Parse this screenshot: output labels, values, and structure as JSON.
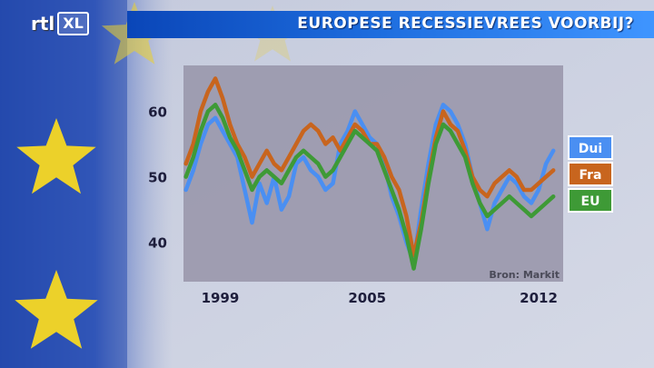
{
  "header": {
    "title": "EUROPESE RECESSIEVREES VOORBIJ?",
    "logo_rtl": "rtl",
    "logo_xl": "XL"
  },
  "chart_data": {
    "type": "line",
    "title": "EUROPESE RECESSIEVREES VOORBIJ?",
    "source": "Bron: Markit",
    "xlim": [
      1997.5,
      2013.0
    ],
    "ylim": [
      34,
      67
    ],
    "xticks": [
      {
        "value": 1999,
        "label": "1999"
      },
      {
        "value": 2005,
        "label": "2005"
      },
      {
        "value": 2012,
        "label": "2012"
      }
    ],
    "yticks": [
      {
        "value": 40,
        "label": "40"
      },
      {
        "value": 50,
        "label": "50"
      },
      {
        "value": 60,
        "label": "60"
      }
    ],
    "grid": false,
    "legend": "right, as labels at line ends",
    "series": [
      {
        "name": "Dui",
        "color": "#4a8ff2",
        "x": [
          1997.6,
          1997.9,
          1998.2,
          1998.5,
          1998.8,
          1999.1,
          1999.4,
          1999.7,
          2000.0,
          2000.3,
          2000.6,
          2000.9,
          2001.2,
          2001.5,
          2001.8,
          2002.1,
          2002.4,
          2002.7,
          2003.0,
          2003.3,
          2003.6,
          2003.9,
          2004.2,
          2004.5,
          2004.8,
          2005.1,
          2005.4,
          2005.7,
          2006.0,
          2006.3,
          2006.6,
          2006.9,
          2007.2,
          2007.5,
          2007.8,
          2008.1,
          2008.4,
          2008.7,
          2009.0,
          2009.3,
          2009.6,
          2009.9,
          2010.2,
          2010.5,
          2010.8,
          2011.1,
          2011.4,
          2011.7,
          2012.0,
          2012.3,
          2012.6
        ],
        "values": [
          48,
          51,
          55,
          58,
          59,
          57,
          55,
          53,
          48,
          43,
          49,
          46,
          50,
          45,
          47,
          52,
          53,
          51,
          50,
          48,
          49,
          55,
          57,
          60,
          58,
          56,
          55,
          52,
          47,
          44,
          40,
          37,
          45,
          52,
          58,
          61,
          60,
          58,
          55,
          50,
          46,
          42,
          46,
          48,
          50,
          49,
          47,
          46,
          48,
          52,
          54
        ]
      },
      {
        "name": "Fra",
        "color": "#c8651e",
        "x": [
          1997.6,
          1997.9,
          1998.2,
          1998.5,
          1998.8,
          1999.1,
          1999.4,
          1999.7,
          2000.0,
          2000.3,
          2000.6,
          2000.9,
          2001.2,
          2001.5,
          2001.8,
          2002.1,
          2002.4,
          2002.7,
          2003.0,
          2003.3,
          2003.6,
          2003.9,
          2004.2,
          2004.5,
          2004.8,
          2005.1,
          2005.4,
          2005.7,
          2006.0,
          2006.3,
          2006.6,
          2006.9,
          2007.2,
          2007.5,
          2007.8,
          2008.1,
          2008.4,
          2008.7,
          2009.0,
          2009.3,
          2009.6,
          2009.9,
          2010.2,
          2010.5,
          2010.8,
          2011.1,
          2011.4,
          2011.7,
          2012.0,
          2012.3,
          2012.6
        ],
        "values": [
          52,
          55,
          60,
          63,
          65,
          62,
          58,
          55,
          53,
          50,
          52,
          54,
          52,
          51,
          53,
          55,
          57,
          58,
          57,
          55,
          56,
          54,
          56,
          58,
          57,
          55,
          55,
          53,
          50,
          48,
          44,
          38,
          43,
          50,
          56,
          60,
          58,
          57,
          54,
          50,
          48,
          47,
          49,
          50,
          51,
          50,
          48,
          48,
          49,
          50,
          51
        ]
      },
      {
        "name": "EU",
        "color": "#3e9a36",
        "x": [
          1997.6,
          1997.9,
          1998.2,
          1998.5,
          1998.8,
          1999.1,
          1999.4,
          1999.7,
          2000.0,
          2000.3,
          2000.6,
          2000.9,
          2001.2,
          2001.5,
          2001.8,
          2002.1,
          2002.4,
          2002.7,
          2003.0,
          2003.3,
          2003.6,
          2003.9,
          2004.2,
          2004.5,
          2004.8,
          2005.1,
          2005.4,
          2005.7,
          2006.0,
          2006.3,
          2006.6,
          2006.9,
          2007.2,
          2007.5,
          2007.8,
          2008.1,
          2008.4,
          2008.7,
          2009.0,
          2009.3,
          2009.6,
          2009.9,
          2010.2,
          2010.5,
          2010.8,
          2011.1,
          2011.4,
          2011.7,
          2012.0,
          2012.3,
          2012.6
        ],
        "values": [
          50,
          53,
          57,
          60,
          61,
          59,
          56,
          54,
          51,
          48,
          50,
          51,
          50,
          49,
          51,
          53,
          54,
          53,
          52,
          50,
          51,
          53,
          55,
          57,
          56,
          55,
          54,
          51,
          48,
          45,
          41,
          36,
          42,
          49,
          55,
          58,
          57,
          55,
          53,
          49,
          46,
          44,
          45,
          46,
          47,
          46,
          45,
          44,
          45,
          46,
          47
        ]
      }
    ]
  },
  "colors": {
    "title_bar": "#1a5fd6",
    "plot_bg": "#9b99ad",
    "flag_blue": "#2a4fb0",
    "star_yellow": "#ecd12a"
  }
}
